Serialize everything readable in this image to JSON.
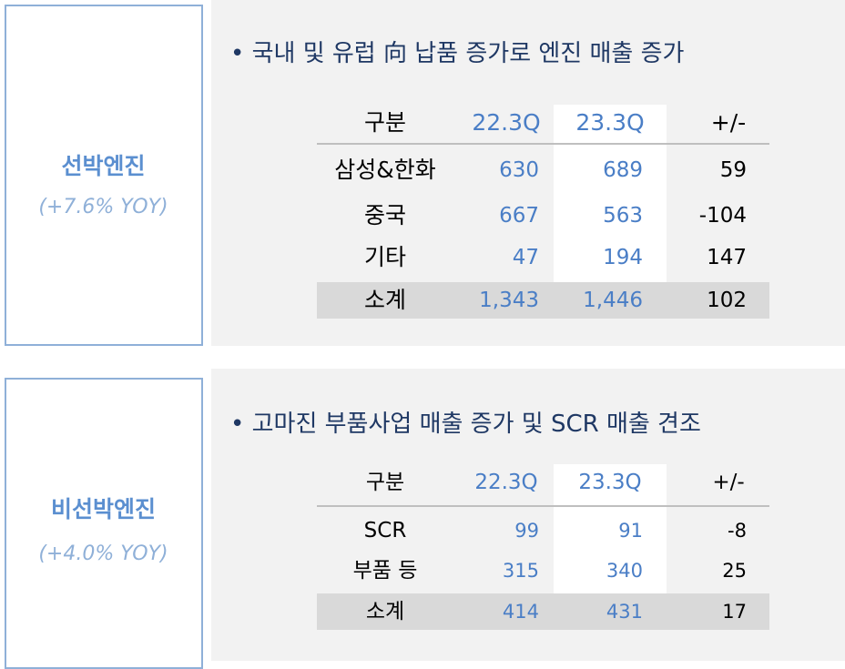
{
  "sections": [
    {
      "label": "선박엔진",
      "growth": "(+7.6% YOY)",
      "bullet": "• 국내 및 유럽 向 납품 증가로 엔진 매출 증가",
      "table": {
        "header": [
          "구분",
          "22.3Q",
          "23.3Q",
          "+/-"
        ],
        "rows": [
          [
            "삼성&한화",
            "630",
            "689",
            "59"
          ],
          [
            "중국",
            "667",
            "563",
            "-104"
          ],
          [
            "기타",
            "47",
            "194",
            "147"
          ]
        ],
        "total": [
          "소계",
          "1,343",
          "1,446",
          "102"
        ]
      }
    },
    {
      "label": "비선박엔진",
      "growth": "(+4.0% YOY)",
      "bullet": "• 고마진 부품사업 매출 증가 및 SCR 매출 견조",
      "table": {
        "header": [
          "구분",
          "22.3Q",
          "23.3Q",
          "+/-"
        ],
        "rows": [
          [
            "SCR",
            "99",
            "91",
            "-8"
          ],
          [
            "부품 등",
            "315",
            "340",
            "25"
          ]
        ],
        "total": [
          "소계",
          "414",
          "431",
          "17"
        ]
      }
    }
  ]
}
